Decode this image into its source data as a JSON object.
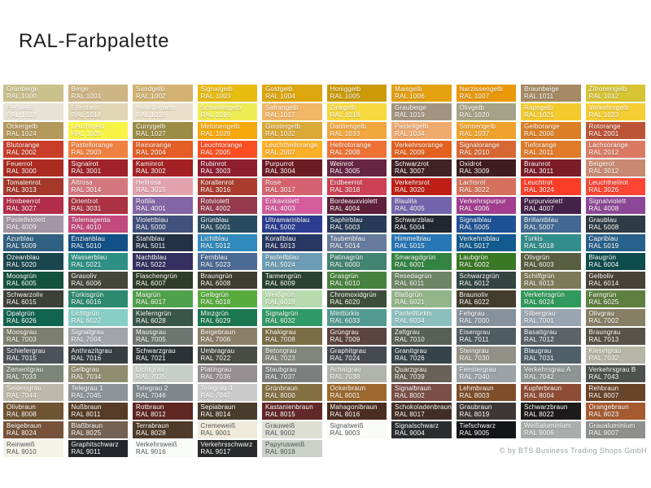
{
  "title": "RAL-Farbpalette",
  "copyright": "© by BTS Business Trading Shops GmbH",
  "text_colors": {
    "light": "#ffffff",
    "dark": "#4d5356"
  },
  "grid": {
    "columns": 10,
    "rows": 20
  },
  "palette": [
    {
      "name": "Grünbeige",
      "ral": "RAL 1000",
      "hex": "#C9C08B"
    },
    {
      "name": "Beige",
      "ral": "RAL 1001",
      "hex": "#CDB584"
    },
    {
      "name": "Sandgelb",
      "ral": "RAL 1002",
      "hex": "#D3B271"
    },
    {
      "name": "Signalgelb",
      "ral": "RAL 1003",
      "hex": "#E8BB0F"
    },
    {
      "name": "Goldgelb",
      "ral": "RAL 1004",
      "hex": "#DCA60D"
    },
    {
      "name": "Honiggelb",
      "ral": "RAL 1005",
      "hex": "#CB9A05"
    },
    {
      "name": "Maisgelb",
      "ral": "RAL 1006",
      "hex": "#E3A00F"
    },
    {
      "name": "Narzissengelb",
      "ral": "RAL 1007",
      "hex": "#E9980A"
    },
    {
      "name": "Braunbeige",
      "ral": "RAL 1011",
      "hex": "#A58A63"
    },
    {
      "name": "Zitronengelb",
      "ral": "RAL 1012",
      "hex": "#D6C433"
    },
    {
      "name": "Perlweiß",
      "ral": "RAL 1013",
      "hex": "#E7E2D5"
    },
    {
      "name": "Elfenbein",
      "ral": "RAL 1014",
      "hex": "#E2D5B5"
    },
    {
      "name": "Hellelfenbein",
      "ral": "RAL 1015",
      "hex": "#EADFC9"
    },
    {
      "name": "Schwefelgelb",
      "ral": "RAL 1016",
      "hex": "#EEEB55"
    },
    {
      "name": "Safrangelb",
      "ral": "RAL 1017",
      "hex": "#F2B667"
    },
    {
      "name": "Zinkgelb",
      "ral": "RAL 1018",
      "hex": "#F5D93F"
    },
    {
      "name": "Graubeige",
      "ral": "RAL 1019",
      "hex": "#A39482"
    },
    {
      "name": "Olivgelb",
      "ral": "RAL 1020",
      "hex": "#A5A287"
    },
    {
      "name": "Rapsgelb",
      "ral": "RAL 1021",
      "hex": "#F3CB2D"
    },
    {
      "name": "Verkehrsgelb",
      "ral": "RAL 1023",
      "hex": "#F5CE33"
    },
    {
      "name": "Ockergelb",
      "ral": "RAL 1024",
      "hex": "#B4985C"
    },
    {
      "name": "Leuchtgelb",
      "ral": "RAL 1026",
      "hex": "#F7F345"
    },
    {
      "name": "Currygelb",
      "ral": "RAL 1027",
      "hex": "#9C8C44"
    },
    {
      "name": "Melonengelb",
      "ral": "RAL 1028",
      "hex": "#F7A80B"
    },
    {
      "name": "Ginstergelb",
      "ral": "RAL 1032",
      "hex": "#DAA836"
    },
    {
      "name": "Dahliengelb",
      "ral": "RAL 1033",
      "hex": "#F2A63E"
    },
    {
      "name": "Pastellgelb",
      "ral": "RAL 1034",
      "hex": "#F0AA6E"
    },
    {
      "name": "Sonnengelb",
      "ral": "RAL 1037",
      "hex": "#EFA22B"
    },
    {
      "name": "Gelborange",
      "ral": "RAL 2000",
      "hex": "#DB7E24"
    },
    {
      "name": "Rotorange",
      "ral": "RAL 2001",
      "hex": "#BD5438"
    },
    {
      "name": "Blutorange",
      "ral": "RAL 2002",
      "hex": "#C83C28"
    },
    {
      "name": "Pastellorange",
      "ral": "RAL 2003",
      "hex": "#F0803F"
    },
    {
      "name": "Reinorange",
      "ral": "RAL 2004",
      "hex": "#E45E26"
    },
    {
      "name": "Leuchtorange",
      "ral": "RAL 2005",
      "hex": "#FC4E20"
    },
    {
      "name": "Leuchthellorange",
      "ral": "RAL 2007",
      "hex": "#FFB026"
    },
    {
      "name": "Hellrotorange",
      "ral": "RAL 2008",
      "hex": "#EE7236"
    },
    {
      "name": "Verkehrsorange",
      "ral": "RAL 2009",
      "hex": "#E3611F"
    },
    {
      "name": "Signalorange",
      "ral": "RAL 2010",
      "hex": "#D76732"
    },
    {
      "name": "Tieforange",
      "ral": "RAL 2011",
      "hex": "#E07A28"
    },
    {
      "name": "Lachsorange",
      "ral": "RAL 2012",
      "hex": "#DB7A64"
    },
    {
      "name": "Feuerrot",
      "ral": "RAL 3000",
      "hex": "#AB2A21"
    },
    {
      "name": "Signalrot",
      "ral": "RAL 3001",
      "hex": "#A0222A"
    },
    {
      "name": "Kaminrot",
      "ral": "RAL 3002",
      "hex": "#A32125"
    },
    {
      "name": "Rubinrot",
      "ral": "RAL 3003",
      "hex": "#8E1D2E"
    },
    {
      "name": "Purpurrot",
      "ral": "RAL 3004",
      "hex": "#6D1C24"
    },
    {
      "name": "Weinrot",
      "ral": "RAL 3005",
      "hex": "#672544"
    },
    {
      "name": "Schwarzrot",
      "ral": "RAL 3007",
      "hex": "#402227"
    },
    {
      "name": "Oxidrot",
      "ral": "RAL 3009",
      "hex": "#3F1D20"
    },
    {
      "name": "Braunrot",
      "ral": "RAL 3011",
      "hex": "#7B1C27"
    },
    {
      "name": "Beigerot",
      "ral": "RAL 3012",
      "hex": "#C98A72"
    },
    {
      "name": "Tomatenrot",
      "ral": "RAL 3013",
      "hex": "#A5382B"
    },
    {
      "name": "Altrosa",
      "ral": "RAL 3014",
      "hex": "#D4787E"
    },
    {
      "name": "Hellrosa",
      "ral": "RAL 3015",
      "hex": "#E2A3AE"
    },
    {
      "name": "Korallenrot",
      "ral": "RAL 3016",
      "hex": "#AB3C2E"
    },
    {
      "name": "Rose",
      "ral": "RAL 3017",
      "hex": "#D5636F"
    },
    {
      "name": "Erdbeerrot",
      "ral": "RAL 3018",
      "hex": "#CE4154"
    },
    {
      "name": "Verkehrsrot",
      "ral": "RAL 3020",
      "hex": "#BE1E15"
    },
    {
      "name": "Lachsrot",
      "ral": "RAL 3022",
      "hex": "#D5705A"
    },
    {
      "name": "Leuchtrot",
      "ral": "RAL 3024",
      "hex": "#FB3D28"
    },
    {
      "name": "Leuchthellrot",
      "ral": "RAL 3026",
      "hex": "#FC4534"
    },
    {
      "name": "Himbeerrot",
      "ral": "RAL 3027",
      "hex": "#B32C4B"
    },
    {
      "name": "Orientrot",
      "ral": "RAL 3031",
      "hex": "#AA3241"
    },
    {
      "name": "Rotlila",
      "ral": "RAL 4001",
      "hex": "#8465A6"
    },
    {
      "name": "Rotviolett",
      "ral": "RAL 4002",
      "hex": "#953A4D"
    },
    {
      "name": "Erikaviolett",
      "ral": "RAL 4003",
      "hex": "#D45C9E"
    },
    {
      "name": "Bordeauxviolett",
      "ral": "RAL 4004",
      "hex": "#5E203A"
    },
    {
      "name": "Blaulila",
      "ral": "RAL 4005",
      "hex": "#7265AE"
    },
    {
      "name": "Verkehrspurpur",
      "ral": "RAL 4006",
      "hex": "#A23D90"
    },
    {
      "name": "Purpurviolett",
      "ral": "RAL 4007",
      "hex": "#44224A"
    },
    {
      "name": "Signalviolett",
      "ral": "RAL 4008",
      "hex": "#8C4796"
    },
    {
      "name": "Pastellviolett",
      "ral": "RAL 4009",
      "hex": "#A396A4"
    },
    {
      "name": "Telemagenta",
      "ral": "RAL 4010",
      "hex": "#C34A7C"
    },
    {
      "name": "Violettblau",
      "ral": "RAL 5000",
      "hex": "#41517E"
    },
    {
      "name": "Grünblau",
      "ral": "RAL 5001",
      "hex": "#294B60"
    },
    {
      "name": "Ultramarinblau",
      "ral": "RAL 5002",
      "hex": "#2C3D91"
    },
    {
      "name": "Saphirblau",
      "ral": "RAL 5003",
      "hex": "#273A58"
    },
    {
      "name": "Schwarzblau",
      "ral": "RAL 5004",
      "hex": "#22262E"
    },
    {
      "name": "Signalblau",
      "ral": "RAL 5005",
      "hex": "#1E5193"
    },
    {
      "name": "Brillantblau",
      "ral": "RAL 5007",
      "hex": "#416994"
    },
    {
      "name": "Graublau",
      "ral": "RAL 5008",
      "hex": "#2E3C46"
    },
    {
      "name": "Azurblau",
      "ral": "RAL 5009",
      "hex": "#306082"
    },
    {
      "name": "Enzianblau",
      "ral": "RAL 5010",
      "hex": "#135087"
    },
    {
      "name": "Stahlblau",
      "ral": "RAL 5011",
      "hex": "#233147"
    },
    {
      "name": "Lichtblau",
      "ral": "RAL 5012",
      "hex": "#318ABD"
    },
    {
      "name": "Korallblau",
      "ral": "RAL 5013",
      "hex": "#273763"
    },
    {
      "name": "Taubenblau",
      "ral": "RAL 5014",
      "hex": "#667B9D"
    },
    {
      "name": "Himmelblau",
      "ral": "RAL 5015",
      "hex": "#2677B6"
    },
    {
      "name": "Verkehrsblau",
      "ral": "RAL 5017",
      "hex": "#125B90"
    },
    {
      "name": "Türkis",
      "ral": "RAL 5018",
      "hex": "#328D8D"
    },
    {
      "name": "Capriblau",
      "ral": "RAL 5019",
      "hex": "#28618C"
    },
    {
      "name": "Ozeanblau",
      "ral": "RAL 5020",
      "hex": "#1A474F"
    },
    {
      "name": "Wasserblau",
      "ral": "RAL 5021",
      "hex": "#2D9085"
    },
    {
      "name": "Nachtblau",
      "ral": "RAL 5022",
      "hex": "#343061"
    },
    {
      "name": "Fernblau",
      "ral": "RAL 5023",
      "hex": "#4B6A94"
    },
    {
      "name": "Pastellblau",
      "ral": "RAL 5024",
      "hex": "#6C9DB5"
    },
    {
      "name": "Patinagrün",
      "ral": "RAL 6000",
      "hex": "#428471"
    },
    {
      "name": "Smaragdgrün",
      "ral": "RAL 6001",
      "hex": "#338443"
    },
    {
      "name": "Laubgrün",
      "ral": "RAL 6002",
      "hex": "#397824"
    },
    {
      "name": "Olivgrün",
      "ral": "RAL 6003",
      "hex": "#585E40"
    },
    {
      "name": "Blaugrün",
      "ral": "RAL 6004",
      "hex": "#0E4C4E"
    },
    {
      "name": "Moosgrün",
      "ral": "RAL 6005",
      "hex": "#13523C"
    },
    {
      "name": "Grauoliv",
      "ral": "RAL 6006",
      "hex": "#44463B"
    },
    {
      "name": "Flaschengrün",
      "ral": "RAL 6007",
      "hex": "#2F3D28"
    },
    {
      "name": "Braungrün",
      "ral": "RAL 6008",
      "hex": "#3E3D2F"
    },
    {
      "name": "Tannengrün",
      "ral": "RAL 6009",
      "hex": "#294231"
    },
    {
      "name": "Grasgrün",
      "ral": "RAL 6010",
      "hex": "#46823D"
    },
    {
      "name": "Resedagrün",
      "ral": "RAL 6011",
      "hex": "#6E8564"
    },
    {
      "name": "Schwarzgrün",
      "ral": "RAL 6012",
      "hex": "#334441"
    },
    {
      "name": "Schilfgrün",
      "ral": "RAL 6013",
      "hex": "#7C7B59"
    },
    {
      "name": "Gelboliv",
      "ral": "RAL 6014",
      "hex": "#474237"
    },
    {
      "name": "Schwarzoliv",
      "ral": "RAL 6015",
      "hex": "#3D4039"
    },
    {
      "name": "Türkisgrün",
      "ral": "RAL 6016",
      "hex": "#2D8A6E"
    },
    {
      "name": "Maigrün",
      "ral": "RAL 6017",
      "hex": "#50A14C"
    },
    {
      "name": "Gelbgrün",
      "ral": "RAL 6018",
      "hex": "#58AC3E"
    },
    {
      "name": "Weißgrün",
      "ral": "RAL 6019",
      "hex": "#B7DAAE"
    },
    {
      "name": "Chromoxidgrün",
      "ral": "RAL 6020",
      "hex": "#3D4E39"
    },
    {
      "name": "Blaßgrün",
      "ral": "RAL 6021",
      "hex": "#92B489"
    },
    {
      "name": "Braunoliv",
      "ral": "RAL 6022",
      "hex": "#423C2D"
    },
    {
      "name": "Verkehrsgrün",
      "ral": "RAL 6024",
      "hex": "#2F9A5B"
    },
    {
      "name": "Farngrün",
      "ral": "RAL 6025",
      "hex": "#5D8040"
    },
    {
      "name": "Opalgrün",
      "ral": "RAL 6026",
      "hex": "#116450"
    },
    {
      "name": "Lichtgrün",
      "ral": "RAL 6027",
      "hex": "#87CEC6"
    },
    {
      "name": "Kieferngrün",
      "ral": "RAL 6028",
      "hex": "#38564A"
    },
    {
      "name": "Minzgrün",
      "ral": "RAL 6029",
      "hex": "#1A7750"
    },
    {
      "name": "Signalgrün",
      "ral": "RAL 6032",
      "hex": "#2F9A67"
    },
    {
      "name": "Minttürkis",
      "ral": "RAL 6033",
      "hex": "#529A91"
    },
    {
      "name": "Pastelltürkis",
      "ral": "RAL 6034",
      "hex": "#8ABFBE"
    },
    {
      "name": "Fehgrau",
      "ral": "RAL 7000",
      "hex": "#86919C"
    },
    {
      "name": "Silbergrau",
      "ral": "RAL 7001",
      "hex": "#99A5B0"
    },
    {
      "name": "Olivgrau",
      "ral": "RAL 7002",
      "hex": "#867F64"
    },
    {
      "name": "Moosgrau",
      "ral": "RAL 7003",
      "hex": "#7D7F6D"
    },
    {
      "name": "Signalgrau",
      "ral": "RAL 7004",
      "hex": "#A1A5AA"
    },
    {
      "name": "Mausgrau",
      "ral": "RAL 7005",
      "hex": "#6F7672"
    },
    {
      "name": "Beigebraun",
      "ral": "RAL 7006",
      "hex": "#8C7F68"
    },
    {
      "name": "Khakigrau",
      "ral": "RAL 7008",
      "hex": "#7A6D46"
    },
    {
      "name": "Grüngrau",
      "ral": "RAL 7009",
      "hex": "#5C4340"
    },
    {
      "name": "Zeltgrau",
      "ral": "RAL 7010",
      "hex": "#596055"
    },
    {
      "name": "Eisengrau",
      "ral": "RAL 7011",
      "hex": "#4F5C62"
    },
    {
      "name": "Basaltgrau",
      "ral": "RAL 7012",
      "hex": "#5B6368"
    },
    {
      "name": "Braungrau",
      "ral": "RAL 7013",
      "hex": "#595249"
    },
    {
      "name": "Schiefergrau",
      "ral": "RAL 7015",
      "hex": "#4C515A"
    },
    {
      "name": "Anthrazitgrau",
      "ral": "RAL 7016",
      "hex": "#363E42"
    },
    {
      "name": "Schwarzgrau",
      "ral": "RAL 7021",
      "hex": "#2C3335"
    },
    {
      "name": "Umbragrau",
      "ral": "RAL 7022",
      "hex": "#494C44"
    },
    {
      "name": "Betongrau",
      "ral": "RAL 7023",
      "hex": "#80847A"
    },
    {
      "name": "Graphitgrau",
      "ral": "RAL 7024",
      "hex": "#464A51"
    },
    {
      "name": "Granitgrau",
      "ral": "RAL 7026",
      "hex": "#36444A"
    },
    {
      "name": "Steingrau",
      "ral": "RAL 7030",
      "hex": "#909086"
    },
    {
      "name": "Blaugrau",
      "ral": "RAL 7031",
      "hex": "#50606B"
    },
    {
      "name": "Kieselgrau",
      "ral": "RAL 7032",
      "hex": "#B6B6A6"
    },
    {
      "name": "Zementgrau",
      "ral": "RAL 7033",
      "hex": "#7D8579"
    },
    {
      "name": "Gelbgrau",
      "ral": "RAL 7034",
      "hex": "#908C70"
    },
    {
      "name": "Lichtgrau",
      "ral": "RAL 7035",
      "hex": "#C8CEC8"
    },
    {
      "name": "Platingrau",
      "ral": "RAL 7036",
      "hex": "#958F92"
    },
    {
      "name": "Staubgrau",
      "ral": "RAL 7037",
      "hex": "#7B7F7E"
    },
    {
      "name": "Achatgrau",
      "ral": "RAL 7038",
      "hex": "#B0B4AC"
    },
    {
      "name": "Quarzgrau",
      "ral": "RAL 7039",
      "hex": "#686157"
    },
    {
      "name": "Fenstergrau",
      "ral": "RAL 7040",
      "hex": "#9BA2A8"
    },
    {
      "name": "Verkehrsgrau A",
      "ral": "RAL 7042",
      "hex": "#8D9493"
    },
    {
      "name": "Verkehrsgrau B",
      "ral": "RAL 7043",
      "hex": "#4D524F"
    },
    {
      "name": "Seidengrau",
      "ral": "RAL 7044",
      "hex": "#BCB8AA"
    },
    {
      "name": "Telegrau 1",
      "ral": "RAL 7045",
      "hex": "#8F9498"
    },
    {
      "name": "Telegrau 2",
      "ral": "RAL 7046",
      "hex": "#80888D"
    },
    {
      "name": "Telegrau 4",
      "ral": "RAL 7047",
      "hex": "#C9CAC9"
    },
    {
      "name": "Grünbraun",
      "ral": "RAL 8000",
      "hex": "#847043"
    },
    {
      "name": "Ockerbraun",
      "ral": "RAL 8001",
      "hex": "#9E692E"
    },
    {
      "name": "Signalbraun",
      "ral": "RAL 8002",
      "hex": "#7A4F47"
    },
    {
      "name": "Lehmbraun",
      "ral": "RAL 8003",
      "hex": "#7E4E29"
    },
    {
      "name": "Kupferbraun",
      "ral": "RAL 8004",
      "hex": "#8E4C34"
    },
    {
      "name": "Rehbraun",
      "ral": "RAL 8007",
      "hex": "#684429"
    },
    {
      "name": "Olivbraun",
      "ral": "RAL 8008",
      "hex": "#6F5433"
    },
    {
      "name": "Nußbraun",
      "ral": "RAL 8011",
      "hex": "#563C26"
    },
    {
      "name": "Rotbraun",
      "ral": "RAL 8012",
      "hex": "#602622"
    },
    {
      "name": "Sepiabraun",
      "ral": "RAL 8014",
      "hex": "#483C2C"
    },
    {
      "name": "Kastanienbraun",
      "ral": "RAL 8015",
      "hex": "#622827"
    },
    {
      "name": "Mahagonibraun",
      "ral": "RAL 8016",
      "hex": "#4B2C20"
    },
    {
      "name": "Schokoladenbraun",
      "ral": "RAL 8017",
      "hex": "#432E27"
    },
    {
      "name": "Graubraun",
      "ral": "RAL 8019",
      "hex": "#3D3736"
    },
    {
      "name": "Schwarzbraun",
      "ral": "RAL 8022",
      "hex": "#1C1A1A"
    },
    {
      "name": "Orangebraun",
      "ral": "RAL 8023",
      "hex": "#A55A30"
    },
    {
      "name": "Beigebraun",
      "ral": "RAL 8024",
      "hex": "#76533A"
    },
    {
      "name": "Blaßbraun",
      "ral": "RAL 8025",
      "hex": "#746152"
    },
    {
      "name": "Terrabraun",
      "ral": "RAL 8028",
      "hex": "#4F3B29"
    },
    {
      "name": "Cremeweiß",
      "ral": "RAL 9001",
      "hex": "#EFEADA",
      "dark": true
    },
    {
      "name": "Grauweiß",
      "ral": "RAL 9002",
      "hex": "#DEDFD4",
      "dark": true
    },
    {
      "name": "Signalweiß",
      "ral": "RAL 9003",
      "hex": "#F9FBF7",
      "dark": true
    },
    {
      "name": "Signalschwarz",
      "ral": "RAL 9004",
      "hex": "#2A2D2F"
    },
    {
      "name": "Tiefschwarz",
      "ral": "RAL 9005",
      "hex": "#141518"
    },
    {
      "name": "Weißaluminium",
      "ral": "RAL 9006",
      "hex": "#A9ADAB"
    },
    {
      "name": "Graualuminium",
      "ral": "RAL 9007",
      "hex": "#8E908D"
    },
    {
      "name": "Reinweiß",
      "ral": "RAL 9010",
      "hex": "#F5F2E7",
      "dark": true
    },
    {
      "name": "Graphitschwarz",
      "ral": "RAL 9011",
      "hex": "#24272B"
    },
    {
      "name": "Verkehrsweiß",
      "ral": "RAL 9016",
      "hex": "#F9FCF8",
      "dark": true
    },
    {
      "name": "Verkehrsschwarz",
      "ral": "RAL 9017",
      "hex": "#282A2C"
    },
    {
      "name": "Papyrusweiß",
      "ral": "RAL 9018",
      "hex": "#CBD0C8",
      "dark": true
    }
  ]
}
